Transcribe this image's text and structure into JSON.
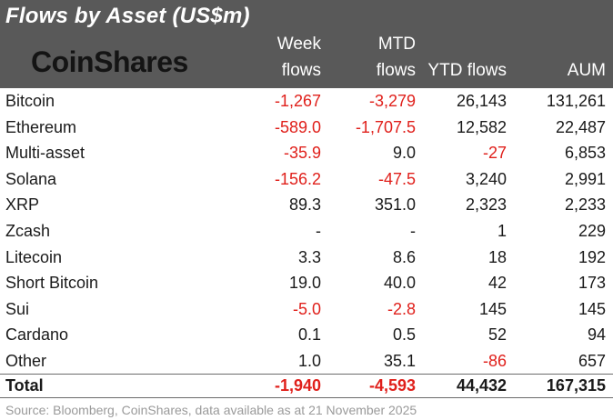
{
  "title": "Flows by Asset (US$m)",
  "logo_text": "CoinShares",
  "columns": {
    "week": [
      "Week",
      "flows"
    ],
    "mtd": [
      "MTD",
      "flows"
    ],
    "ytd": "YTD flows",
    "aum": "AUM"
  },
  "colors": {
    "header_bg": "#595959",
    "negative": "#e0201b",
    "text": "#1a1a1a",
    "source": "#9a9a9a"
  },
  "rows": [
    {
      "asset": "Bitcoin",
      "week": "-1,267",
      "mtd": "-3,279",
      "ytd": "26,143",
      "aum": "131,261"
    },
    {
      "asset": "Ethereum",
      "week": "-589.0",
      "mtd": "-1,707.5",
      "ytd": "12,582",
      "aum": "22,487"
    },
    {
      "asset": "Multi-asset",
      "week": "-35.9",
      "mtd": "9.0",
      "ytd": "-27",
      "aum": "6,853"
    },
    {
      "asset": "Solana",
      "week": "-156.2",
      "mtd": "-47.5",
      "ytd": "3,240",
      "aum": "2,991"
    },
    {
      "asset": "XRP",
      "week": "89.3",
      "mtd": "351.0",
      "ytd": "2,323",
      "aum": "2,233"
    },
    {
      "asset": "Zcash",
      "week": "-",
      "mtd": "-",
      "ytd": "1",
      "aum": "229"
    },
    {
      "asset": "Litecoin",
      "week": "3.3",
      "mtd": "8.6",
      "ytd": "18",
      "aum": "192"
    },
    {
      "asset": "Short Bitcoin",
      "week": "19.0",
      "mtd": "40.0",
      "ytd": "42",
      "aum": "173"
    },
    {
      "asset": "Sui",
      "week": "-5.0",
      "mtd": "-2.8",
      "ytd": "145",
      "aum": "145"
    },
    {
      "asset": "Cardano",
      "week": "0.1",
      "mtd": "0.5",
      "ytd": "52",
      "aum": "94"
    },
    {
      "asset": "Other",
      "week": "1.0",
      "mtd": "35.1",
      "ytd": "-86",
      "aum": "657"
    }
  ],
  "total": {
    "label": "Total",
    "week": "-1,940",
    "mtd": "-4,593",
    "ytd": "44,432",
    "aum": "167,315"
  },
  "source": "Source: Bloomberg, CoinShares, data available as at 21 November 2025"
}
